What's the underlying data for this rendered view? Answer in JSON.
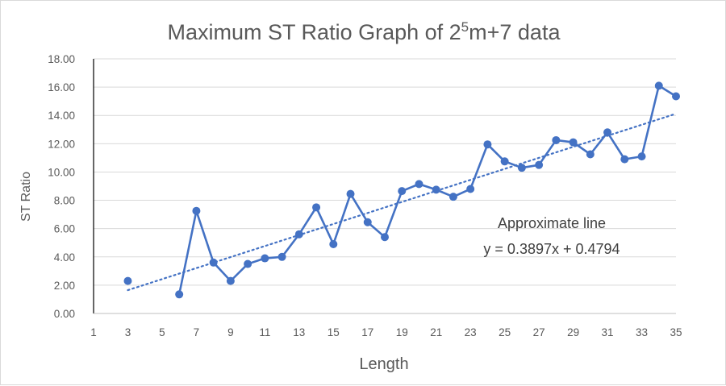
{
  "chart_data": {
    "type": "line",
    "title": "Maximum ST Ratio Graph of 2",
    "title_superscript": "5",
    "title_suffix": "m+7 data",
    "xlabel": "Length",
    "ylabel": "ST Ratio",
    "xlim": [
      1,
      35
    ],
    "ylim": [
      0,
      18
    ],
    "x_ticks": [
      1,
      3,
      5,
      7,
      9,
      11,
      13,
      15,
      17,
      19,
      21,
      23,
      25,
      27,
      29,
      31,
      33,
      35
    ],
    "y_ticks": [
      "0.00",
      "2.00",
      "4.00",
      "6.00",
      "8.00",
      "10.00",
      "12.00",
      "14.00",
      "16.00",
      "18.00"
    ],
    "grid": "horizontal",
    "series": [
      {
        "color": "#4472c4",
        "segments": [
          [
            [
              3,
              2.3
            ]
          ],
          [
            [
              6,
              1.35
            ],
            [
              7,
              7.25
            ],
            [
              8,
              3.6
            ],
            [
              9,
              2.3
            ],
            [
              10,
              3.5
            ],
            [
              11,
              3.9
            ],
            [
              12,
              4.0
            ],
            [
              13,
              5.6
            ],
            [
              14,
              7.5
            ],
            [
              15,
              4.9
            ],
            [
              16,
              8.45
            ],
            [
              17,
              6.45
            ],
            [
              18,
              5.4
            ],
            [
              19,
              8.65
            ],
            [
              20,
              9.15
            ],
            [
              21,
              8.75
            ],
            [
              22,
              8.25
            ],
            [
              23,
              8.8
            ],
            [
              24,
              11.95
            ],
            [
              25,
              10.75
            ],
            [
              26,
              10.3
            ],
            [
              27,
              10.5
            ],
            [
              28,
              12.25
            ],
            [
              29,
              12.1
            ],
            [
              30,
              11.25
            ],
            [
              31,
              12.8
            ],
            [
              32,
              10.9
            ],
            [
              33,
              11.1
            ],
            [
              34,
              16.1
            ],
            [
              35,
              15.35
            ]
          ]
        ]
      }
    ],
    "trendline": {
      "style": "dotted",
      "color": "#4472c4",
      "slope": 0.3897,
      "intercept": 0.4794,
      "x_range": [
        3,
        35
      ]
    },
    "annotation": {
      "line1": "Approximate line",
      "line2": "y = 0.3897x + 0.4794"
    }
  }
}
